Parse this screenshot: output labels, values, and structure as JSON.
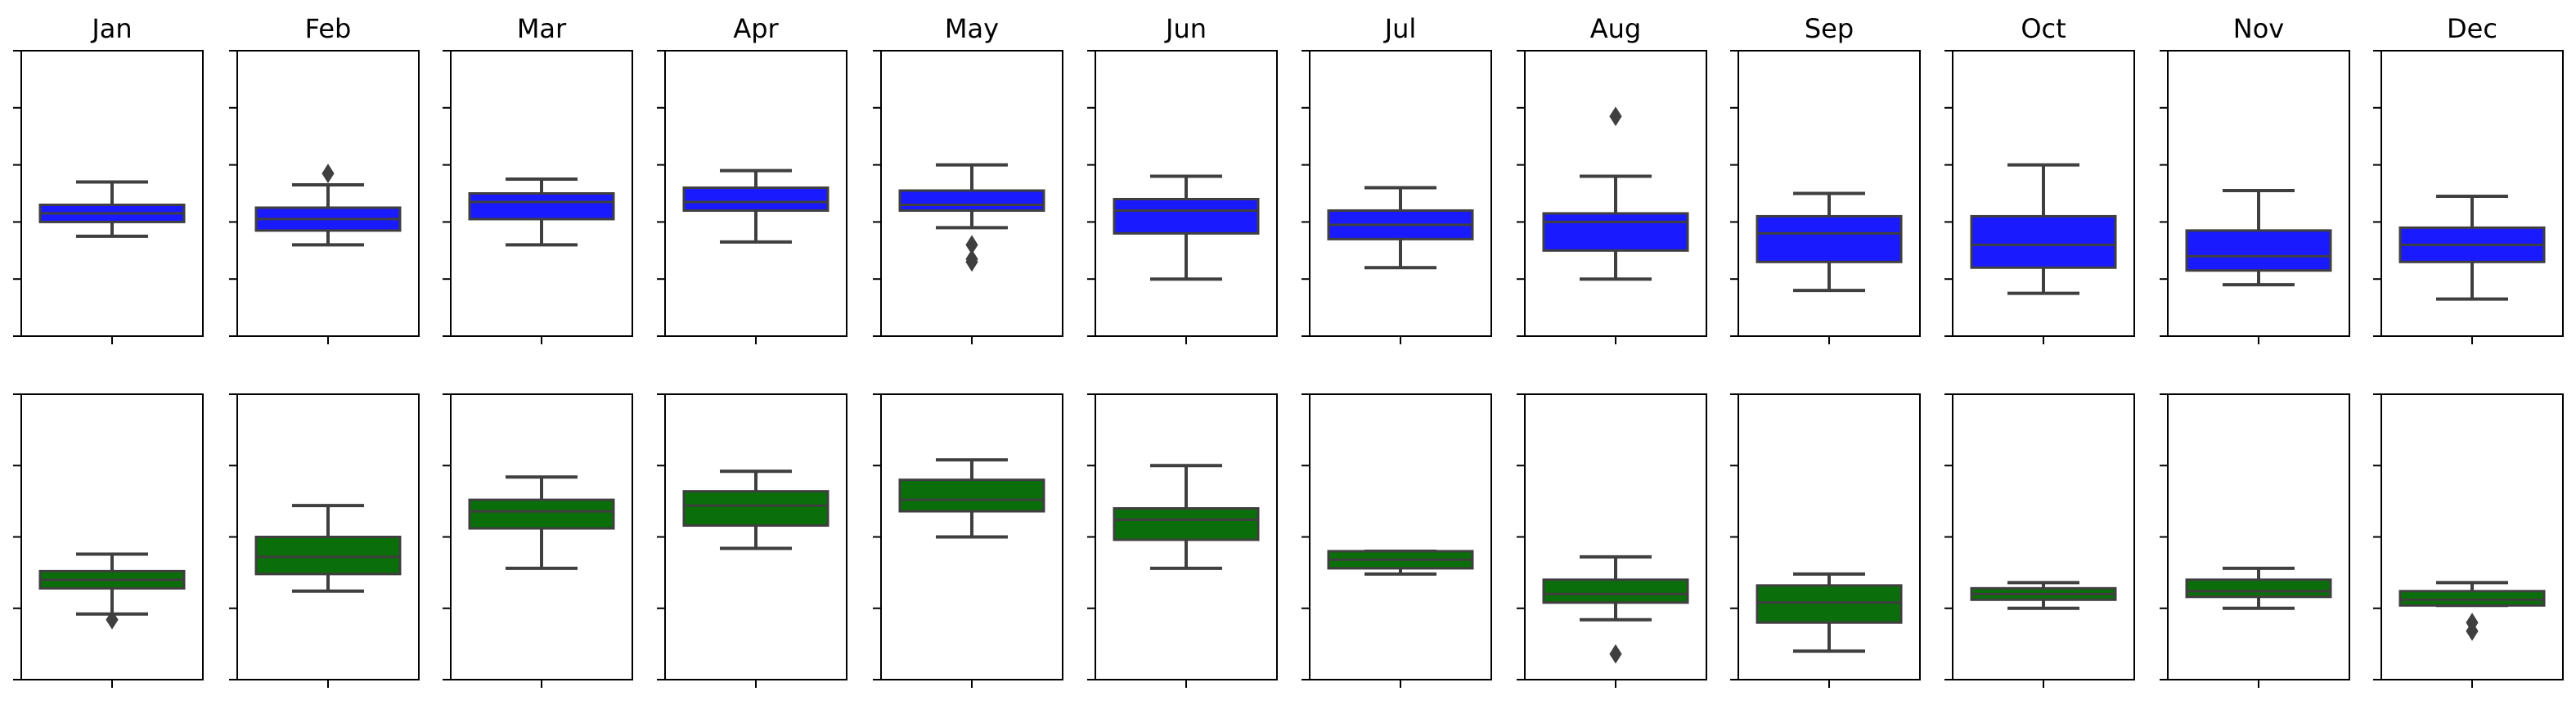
{
  "chart_data": {
    "type": "box",
    "categories": [
      "Jan",
      "Feb",
      "Mar",
      "Apr",
      "May",
      "Jun",
      "Jul",
      "Aug",
      "Sep",
      "Oct",
      "Nov",
      "Dec"
    ],
    "tick_labels_visible": false,
    "grid": false,
    "legend": "none",
    "rows": [
      {
        "color": "#1a1aff",
        "ylim": [
          0,
          100
        ],
        "y_ticks": [
          0,
          20,
          40,
          60,
          80,
          100
        ],
        "boxes": [
          {
            "month": "Jan",
            "whislo": 35,
            "q1": 40,
            "med": 43,
            "q3": 46,
            "whishi": 54,
            "fliers": []
          },
          {
            "month": "Feb",
            "whislo": 32,
            "q1": 37,
            "med": 41,
            "q3": 45,
            "whishi": 53,
            "fliers": [
              57
            ]
          },
          {
            "month": "Mar",
            "whislo": 32,
            "q1": 41,
            "med": 47,
            "q3": 50,
            "whishi": 55,
            "fliers": []
          },
          {
            "month": "Apr",
            "whislo": 33,
            "q1": 44,
            "med": 47,
            "q3": 52,
            "whishi": 58,
            "fliers": []
          },
          {
            "month": "May",
            "whislo": 38,
            "q1": 44,
            "med": 46,
            "q3": 51,
            "whishi": 60,
            "fliers": [
              32,
              27,
              26
            ]
          },
          {
            "month": "Jun",
            "whislo": 20,
            "q1": 36,
            "med": 44,
            "q3": 48,
            "whishi": 56,
            "fliers": []
          },
          {
            "month": "Jul",
            "whislo": 24,
            "q1": 34,
            "med": 39,
            "q3": 44,
            "whishi": 52,
            "fliers": []
          },
          {
            "month": "Aug",
            "whislo": 20,
            "q1": 30,
            "med": 40,
            "q3": 43,
            "whishi": 56,
            "fliers": [
              77
            ]
          },
          {
            "month": "Sep",
            "whislo": 16,
            "q1": 26,
            "med": 36,
            "q3": 42,
            "whishi": 50,
            "fliers": []
          },
          {
            "month": "Oct",
            "whislo": 15,
            "q1": 24,
            "med": 32,
            "q3": 42,
            "whishi": 60,
            "fliers": []
          },
          {
            "month": "Nov",
            "whislo": 18,
            "q1": 23,
            "med": 28,
            "q3": 37,
            "whishi": 51,
            "fliers": []
          },
          {
            "month": "Dec",
            "whislo": 13,
            "q1": 26,
            "med": 32,
            "q3": 38,
            "whishi": 49,
            "fliers": []
          }
        ]
      },
      {
        "color": "#0a6f0a",
        "ylim": [
          0,
          100
        ],
        "y_ticks": [
          0,
          25,
          50,
          75,
          100
        ],
        "boxes": [
          {
            "month": "Jan",
            "whislo": 23,
            "q1": 32,
            "med": 35,
            "q3": 38,
            "whishi": 44,
            "fliers": [
              21
            ]
          },
          {
            "month": "Feb",
            "whislo": 31,
            "q1": 37,
            "med": 43,
            "q3": 50,
            "whishi": 61,
            "fliers": []
          },
          {
            "month": "Mar",
            "whislo": 39,
            "q1": 53,
            "med": 59,
            "q3": 63,
            "whishi": 71,
            "fliers": []
          },
          {
            "month": "Apr",
            "whislo": 46,
            "q1": 54,
            "med": 61,
            "q3": 66,
            "whishi": 73,
            "fliers": []
          },
          {
            "month": "May",
            "whislo": 50,
            "q1": 59,
            "med": 63,
            "q3": 70,
            "whishi": 77,
            "fliers": []
          },
          {
            "month": "Jun",
            "whislo": 39,
            "q1": 49,
            "med": 56,
            "q3": 60,
            "whishi": 75,
            "fliers": []
          },
          {
            "month": "Jul",
            "whislo": 37,
            "q1": 39,
            "med": 42,
            "q3": 45,
            "whishi": 45,
            "fliers": []
          },
          {
            "month": "Aug",
            "whislo": 21,
            "q1": 27,
            "med": 30,
            "q3": 35,
            "whishi": 43,
            "fliers": [
              9
            ]
          },
          {
            "month": "Sep",
            "whislo": 10,
            "q1": 20,
            "med": 27,
            "q3": 33,
            "whishi": 37,
            "fliers": []
          },
          {
            "month": "Oct",
            "whislo": 25,
            "q1": 28,
            "med": 30,
            "q3": 32,
            "whishi": 34,
            "fliers": []
          },
          {
            "month": "Nov",
            "whislo": 25,
            "q1": 29,
            "med": 31,
            "q3": 35,
            "whishi": 39,
            "fliers": []
          },
          {
            "month": "Dec",
            "whislo": 26,
            "q1": 26,
            "med": 28,
            "q3": 31,
            "whishi": 34,
            "fliers": [
              20,
              17
            ]
          }
        ]
      }
    ]
  }
}
